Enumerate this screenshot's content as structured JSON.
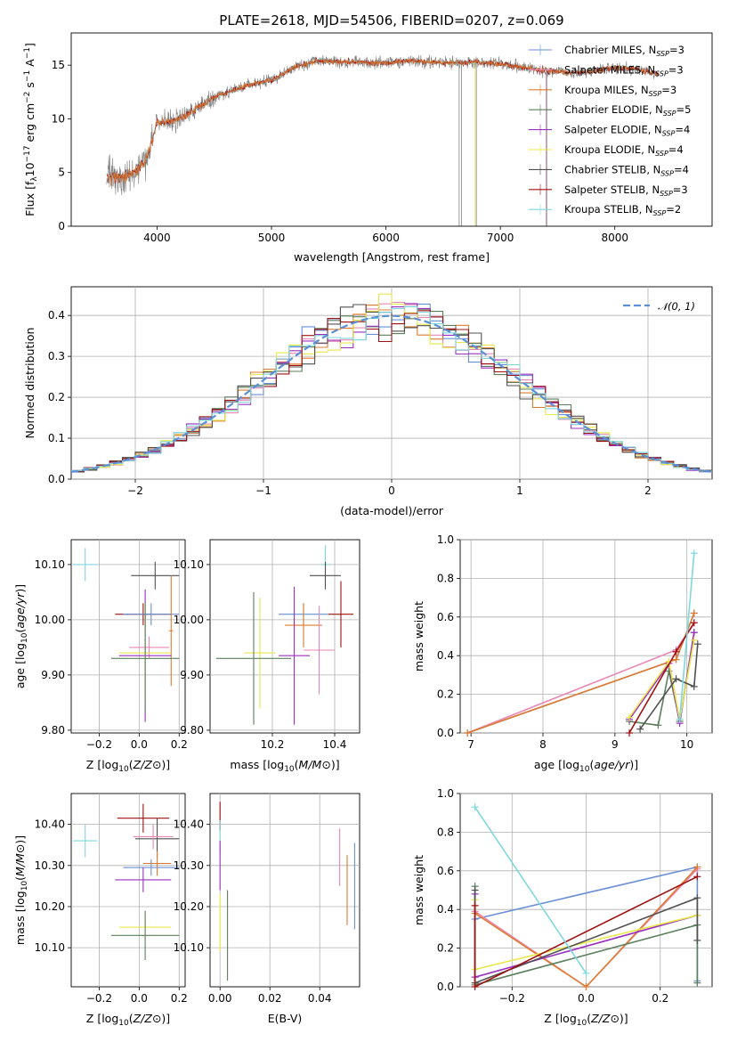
{
  "figure_title": "PLATE=2618, MJD=54506, FIBERID=0207, z=0.069",
  "colors": {
    "Chabrier MILES": "#6b8fd6",
    "Salpeter MILES": "#e987b5",
    "Kroupa MILES": "#e07b2d",
    "Chabrier ELODIE": "#5b7f5b",
    "Salpeter ELODIE": "#9b30c0",
    "Kroupa ELODIE": "#e8e84a",
    "Chabrier STELIB": "#505050",
    "Salpeter STELIB": "#a01010",
    "Kroupa STELIB": "#7fd8dc",
    "data": "#808080",
    "normal": "#5b8fd6"
  },
  "chart_data": [
    {
      "id": "spectrum",
      "type": "line",
      "title": "PLATE=2618, MJD=54506, FIBERID=0207, z=0.069",
      "xlabel": "wavelength [Angstrom, rest frame]",
      "ylabel": "Flux [f",
      "ylabel_parts": [
        "Flux [f",
        "λ",
        "10",
        "−17",
        " erg cm",
        "−2",
        " s",
        "−1",
        " A",
        "−1",
        "]"
      ],
      "xlim": [
        3250,
        8850
      ],
      "ylim": [
        0,
        18
      ],
      "xticks": [
        4000,
        5000,
        6000,
        7000,
        8000
      ],
      "yticks": [
        0,
        5,
        10,
        15
      ],
      "grid": false,
      "legend_position": "top-right",
      "legend": [
        {
          "name": "Chabrier MILES",
          "nssp": "3"
        },
        {
          "name": "Salpeter MILES",
          "nssp": "3"
        },
        {
          "name": "Kroupa MILES",
          "nssp": "3"
        },
        {
          "name": "Chabrier ELODIE",
          "nssp": "5"
        },
        {
          "name": "Salpeter ELODIE",
          "nssp": "4"
        },
        {
          "name": "Kroupa ELODIE",
          "nssp": "4"
        },
        {
          "name": "Chabrier STELIB",
          "nssp": "4"
        },
        {
          "name": "Salpeter STELIB",
          "nssp": "3"
        },
        {
          "name": "Kroupa STELIB",
          "nssp": "2"
        }
      ],
      "nssp_prefix": ", N",
      "nssp_sub": "SSP",
      "continuum": [
        [
          3560,
          4.6
        ],
        [
          3700,
          4.4
        ],
        [
          3800,
          5.0
        ],
        [
          3900,
          6.0
        ],
        [
          4000,
          9.6
        ],
        [
          4200,
          10.0
        ],
        [
          4500,
          12.0
        ],
        [
          4800,
          13.2
        ],
        [
          5000,
          13.6
        ],
        [
          5200,
          14.8
        ],
        [
          5400,
          15.4
        ],
        [
          5700,
          15.3
        ],
        [
          6000,
          15.2
        ],
        [
          6200,
          15.4
        ],
        [
          6500,
          15.2
        ],
        [
          6800,
          15.3
        ],
        [
          7000,
          15.1
        ],
        [
          7200,
          14.8
        ],
        [
          7400,
          14.5
        ],
        [
          7600,
          14.3
        ],
        [
          7800,
          14.4
        ],
        [
          8000,
          14.8
        ],
        [
          8200,
          14.6
        ],
        [
          8380,
          14.2
        ]
      ]
    },
    {
      "id": "residuals",
      "type": "step",
      "xlabel": "(data-model)/error",
      "ylabel": "Normed distribution",
      "xlim": [
        -2.5,
        2.5
      ],
      "ylim": [
        0,
        0.47
      ],
      "xticks": [
        -2,
        -1,
        0,
        1,
        2
      ],
      "yticks": [
        0.0,
        0.1,
        0.2,
        0.3,
        0.4
      ],
      "grid": true,
      "legend_position": "top-right",
      "normal_label": "N(0,1)",
      "bin_width": 0.1
    },
    {
      "id": "age-vs-Z",
      "type": "errorbar",
      "xlabel": "Z [log10(Z/Z⊙)]",
      "ylabel": "age  [log10(age/yr)]",
      "xlim": [
        -0.34,
        0.23
      ],
      "ylim": [
        9.795,
        10.145
      ],
      "xticks": [
        -0.2,
        0.0,
        0.2
      ],
      "yticks": [
        9.8,
        9.9,
        10.0,
        10.1
      ],
      "grid": true,
      "points": [
        {
          "model": "Kroupa STELIB",
          "x": -0.27,
          "xerr": 0.06,
          "y": 10.1,
          "yerr": 0.03
        },
        {
          "model": "Chabrier STELIB",
          "x": 0.08,
          "xerr": 0.12,
          "y": 10.08,
          "yerr": 0.025
        },
        {
          "model": "Salpeter STELIB",
          "x": 0.02,
          "xerr": 0.14,
          "y": 10.01,
          "yerr": 0.02
        },
        {
          "model": "Chabrier MILES",
          "x": 0.06,
          "xerr": 0.14,
          "y": 10.01,
          "yerr": 0.02
        },
        {
          "model": "Kroupa MILES",
          "x": 0.16,
          "xerr": 0.01,
          "y": 9.98,
          "yerr": 0.1
        },
        {
          "model": "Salpeter MILES",
          "x": 0.05,
          "xerr": 0.1,
          "y": 9.95,
          "yerr": 0.02
        },
        {
          "model": "Salpeter ELODIE",
          "x": 0.03,
          "xerr": 0.13,
          "y": 9.935,
          "yerr": 0.12
        },
        {
          "model": "Kroupa ELODIE",
          "x": 0.03,
          "xerr": 0.13,
          "y": 9.94,
          "yerr": 0.09
        },
        {
          "model": "Chabrier ELODIE",
          "x": 0.03,
          "xerr": 0.17,
          "y": 9.93,
          "yerr": 0.1
        }
      ]
    },
    {
      "id": "age-vs-mass",
      "type": "errorbar",
      "xlabel": "mass [log10(M/M⊙)]",
      "ylabel": "",
      "xlim": [
        10.0,
        10.48
      ],
      "ylim": [
        9.795,
        10.145
      ],
      "xticks": [
        10.2,
        10.4
      ],
      "yticks": [
        9.8,
        9.9,
        10.0,
        10.1
      ],
      "grid": true,
      "points": [
        {
          "model": "Kroupa STELIB",
          "x": 10.37,
          "xerr": 0.015,
          "y": 10.1,
          "yerr": 0.035
        },
        {
          "model": "Chabrier STELIB",
          "x": 10.37,
          "xerr": 0.05,
          "y": 10.08,
          "yerr": 0.025
        },
        {
          "model": "Salpeter STELIB",
          "x": 10.42,
          "xerr": 0.04,
          "y": 10.01,
          "yerr": 0.06
        },
        {
          "model": "Chabrier MILES",
          "x": 10.3,
          "xerr": 0.08,
          "y": 10.01,
          "yerr": 0.02
        },
        {
          "model": "Kroupa MILES",
          "x": 10.3,
          "xerr": 0.06,
          "y": 9.99,
          "yerr": 0.04
        },
        {
          "model": "Salpeter MILES",
          "x": 10.35,
          "xerr": 0.05,
          "y": 9.945,
          "yerr": 0.08
        },
        {
          "model": "Salpeter ELODIE",
          "x": 10.27,
          "xerr": 0.05,
          "y": 9.935,
          "yerr": 0.125
        },
        {
          "model": "Kroupa ELODIE",
          "x": 10.16,
          "xerr": 0.05,
          "y": 9.94,
          "yerr": 0.1
        },
        {
          "model": "Chabrier ELODIE",
          "x": 10.14,
          "xerr": 0.12,
          "y": 9.93,
          "yerr": 0.12
        }
      ]
    },
    {
      "id": "mass-weight-vs-age",
      "type": "line",
      "xlabel": "age  [log10(age/yr)]",
      "ylabel": "mass weight",
      "xlim": [
        6.85,
        10.35
      ],
      "ylim": [
        0,
        1.0
      ],
      "xticks": [
        7,
        8,
        9,
        10
      ],
      "yticks": [
        0.0,
        0.2,
        0.4,
        0.6,
        0.8,
        1.0
      ],
      "grid": true,
      "series": [
        {
          "model": "Chabrier MILES",
          "x": [
            6.95,
            9.85,
            10.1
          ],
          "y": [
            0.0,
            0.38,
            0.62
          ]
        },
        {
          "model": "Salpeter MILES",
          "x": [
            6.95,
            9.85,
            10.1
          ],
          "y": [
            0.0,
            0.43,
            0.57
          ]
        },
        {
          "model": "Kroupa MILES",
          "x": [
            6.95,
            9.85,
            10.1
          ],
          "y": [
            0.0,
            0.38,
            0.62
          ]
        },
        {
          "model": "Chabrier ELODIE",
          "x": [
            9.2,
            9.6,
            9.75,
            9.9,
            10.1
          ],
          "y": [
            0.06,
            0.04,
            0.32,
            0.06,
            0.52
          ]
        },
        {
          "model": "Salpeter ELODIE",
          "x": [
            9.2,
            9.75,
            9.9,
            10.1
          ],
          "y": [
            0.07,
            0.36,
            0.05,
            0.52
          ]
        },
        {
          "model": "Kroupa ELODIE",
          "x": [
            9.2,
            9.75,
            9.9,
            10.1
          ],
          "y": [
            0.08,
            0.37,
            0.07,
            0.48
          ]
        },
        {
          "model": "Chabrier STELIB",
          "x": [
            9.35,
            9.85,
            10.1,
            10.15
          ],
          "y": [
            0.02,
            0.28,
            0.24,
            0.46
          ]
        },
        {
          "model": "Salpeter STELIB",
          "x": [
            9.2,
            9.85,
            10.1
          ],
          "y": [
            0.0,
            0.42,
            0.57
          ]
        },
        {
          "model": "Kroupa STELIB",
          "x": [
            9.9,
            10.1
          ],
          "y": [
            0.07,
            0.93
          ]
        }
      ]
    },
    {
      "id": "mass-vs-Z",
      "type": "errorbar",
      "xlabel": "Z [log10(Z/Z⊙)]",
      "ylabel": "mass [log10(M/M⊙)]",
      "xlim": [
        -0.34,
        0.23
      ],
      "ylim": [
        10.005,
        10.475
      ],
      "xticks": [
        -0.2,
        0.0,
        0.2
      ],
      "yticks": [
        10.1,
        10.2,
        10.3,
        10.4
      ],
      "grid": true,
      "points": [
        {
          "model": "Salpeter STELIB",
          "x": 0.02,
          "xerr": 0.13,
          "y": 10.415,
          "yerr": 0.035
        },
        {
          "model": "Kroupa STELIB",
          "x": -0.27,
          "xerr": 0.06,
          "y": 10.36,
          "yerr": 0.04
        },
        {
          "model": "Chabrier STELIB",
          "x": 0.09,
          "xerr": 0.11,
          "y": 10.365,
          "yerr": 0.05
        },
        {
          "model": "Salpeter MILES",
          "x": 0.07,
          "xerr": 0.1,
          "y": 10.37,
          "yerr": 0.03
        },
        {
          "model": "Kroupa MILES",
          "x": 0.09,
          "xerr": 0.07,
          "y": 10.305,
          "yerr": 0.03
        },
        {
          "model": "Chabrier MILES",
          "x": 0.06,
          "xerr": 0.14,
          "y": 10.295,
          "yerr": 0.02
        },
        {
          "model": "Salpeter ELODIE",
          "x": 0.02,
          "xerr": 0.14,
          "y": 10.265,
          "yerr": 0.03
        },
        {
          "model": "Kroupa ELODIE",
          "x": 0.03,
          "xerr": 0.13,
          "y": 10.15,
          "yerr": 0.03
        },
        {
          "model": "Chabrier ELODIE",
          "x": 0.03,
          "xerr": 0.17,
          "y": 10.13,
          "yerr": 0.06
        }
      ]
    },
    {
      "id": "mass-vs-EBV",
      "type": "errorbar",
      "xlabel": "E(B-V)",
      "ylabel": "",
      "xlim": [
        -0.004,
        0.056
      ],
      "ylim": [
        10.005,
        10.475
      ],
      "xticks": [
        0.0,
        0.02,
        0.04
      ],
      "yticks": [
        10.1,
        10.2,
        10.3,
        10.4
      ],
      "grid": true,
      "points": [
        {
          "model": "Salpeter STELIB",
          "x": 0.0,
          "xerr": 0.0,
          "y": 10.42,
          "yerr": 0.035
        },
        {
          "model": "Kroupa STELIB",
          "x": 0.0,
          "xerr": 0.0,
          "y": 10.37,
          "yerr": 0.04
        },
        {
          "model": "Salpeter ELODIE",
          "x": 0.0,
          "xerr": 0.0,
          "y": 10.3,
          "yerr": 0.06
        },
        {
          "model": "Kroupa ELODIE",
          "x": 0.0,
          "xerr": 0.0,
          "y": 10.16,
          "yerr": 0.07
        },
        {
          "model": "Chabrier ELODIE",
          "x": 0.003,
          "xerr": 0.0,
          "y": 10.13,
          "yerr": 0.11
        },
        {
          "model": "Salpeter MILES",
          "x": 0.048,
          "xerr": 0.0,
          "y": 10.32,
          "yerr": 0.07
        },
        {
          "model": "Kroupa MILES",
          "x": 0.051,
          "xerr": 0.0,
          "y": 10.24,
          "yerr": 0.085
        },
        {
          "model": "Chabrier MILES",
          "x": 0.054,
          "xerr": 0.0,
          "y": 10.25,
          "yerr": 0.105
        }
      ]
    },
    {
      "id": "mass-weight-vs-Z",
      "type": "line",
      "xlabel": "Z [log10(Z/Z⊙)]",
      "ylabel": "mass weight",
      "xlim": [
        -0.34,
        0.34
      ],
      "ylim": [
        0,
        1.0
      ],
      "xticks": [
        -0.2,
        0.0,
        0.2
      ],
      "yticks": [
        0.0,
        0.2,
        0.4,
        0.6,
        0.8,
        1.0
      ],
      "grid": true,
      "series": [
        {
          "model": "Chabrier MILES",
          "x": [
            -0.3,
            0.3,
            0.3
          ],
          "y": [
            0.35,
            0.62,
            0.03
          ]
        },
        {
          "model": "Salpeter MILES",
          "x": [
            -0.3,
            0.0,
            0.3
          ],
          "y": [
            0.39,
            0.0,
            0.61
          ]
        },
        {
          "model": "Kroupa MILES",
          "x": [
            -0.3,
            0.0,
            0.3
          ],
          "y": [
            0.38,
            0.0,
            0.62
          ]
        },
        {
          "model": "Chabrier ELODIE",
          "x": [
            -0.3,
            -0.3,
            0.3,
            0.3
          ],
          "y": [
            0.52,
            0.01,
            0.32,
            0.02
          ]
        },
        {
          "model": "Salpeter ELODIE",
          "x": [
            -0.3,
            -0.3,
            0.3
          ],
          "y": [
            0.48,
            0.05,
            0.37
          ]
        },
        {
          "model": "Kroupa ELODIE",
          "x": [
            -0.3,
            -0.3,
            0.3
          ],
          "y": [
            0.45,
            0.09,
            0.37
          ]
        },
        {
          "model": "Chabrier STELIB",
          "x": [
            -0.3,
            -0.3,
            0.3,
            0.3
          ],
          "y": [
            0.5,
            0.02,
            0.46,
            0.24
          ]
        },
        {
          "model": "Salpeter STELIB",
          "x": [
            -0.3,
            -0.3,
            0.3
          ],
          "y": [
            0.42,
            0.0,
            0.57
          ]
        },
        {
          "model": "Kroupa STELIB",
          "x": [
            -0.3,
            0.0
          ],
          "y": [
            0.93,
            0.07
          ]
        }
      ]
    }
  ]
}
